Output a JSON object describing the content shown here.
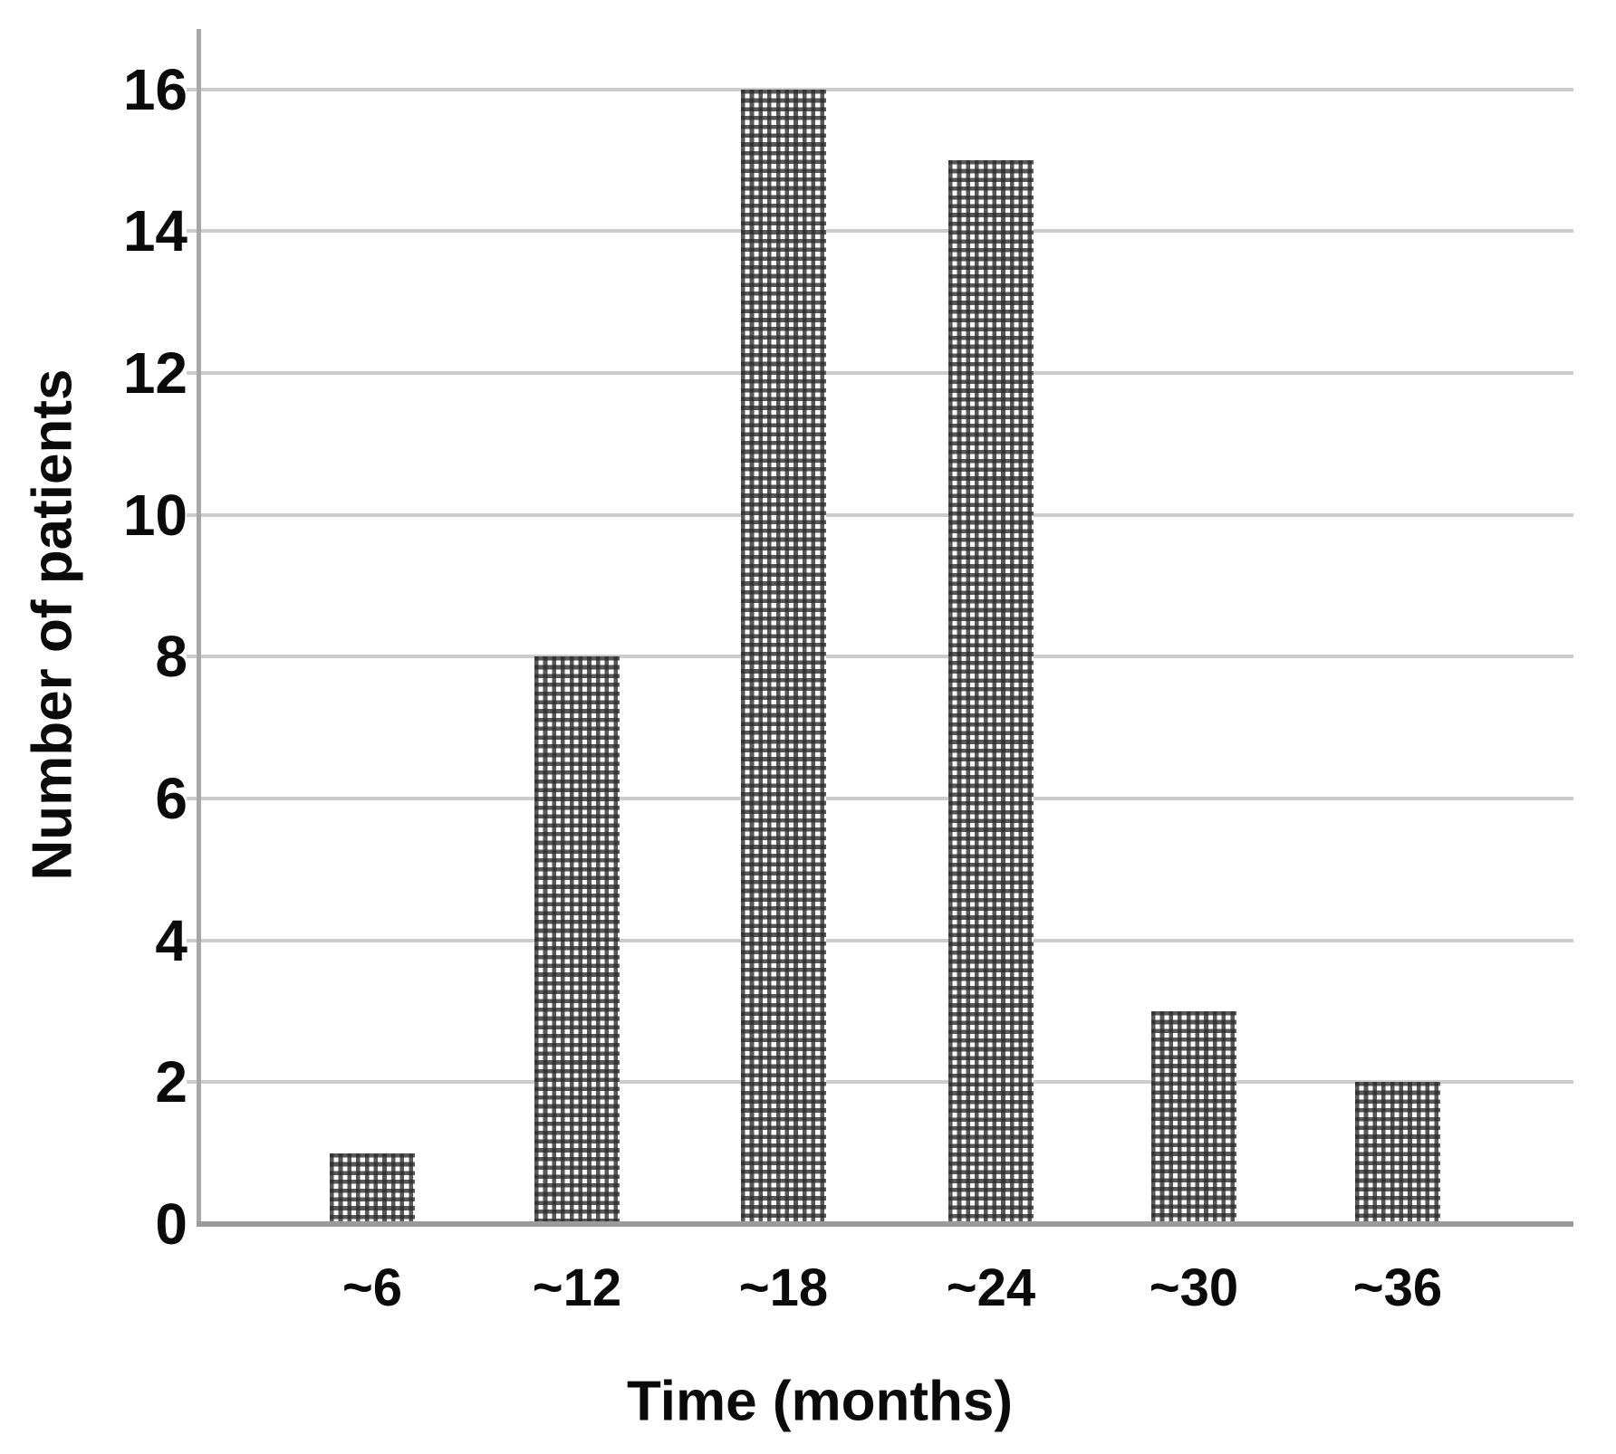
{
  "chart_data": {
    "type": "bar",
    "title": "",
    "xlabel": "Time (months)",
    "ylabel": "Number of patients",
    "categories": [
      "~6",
      "~12",
      "~18",
      "~24",
      "~30",
      "~36"
    ],
    "values": [
      1,
      8,
      16,
      15,
      3,
      2
    ],
    "yticks": [
      0,
      2,
      4,
      6,
      8,
      10,
      12,
      14,
      16
    ],
    "ylim": [
      0,
      16.85
    ],
    "grid": "horizontal",
    "legend": "none",
    "bar_fill": "dark-gray checkered (crosshatch grid) pattern on white",
    "colors": {
      "bar_pattern_line": "#2b2b2b",
      "bar_background": "#fbfbfb",
      "gridline": "#cccccc",
      "axis_line": "#9b9b9b",
      "text": "#0a0a0a",
      "background": "#ffffff"
    }
  }
}
